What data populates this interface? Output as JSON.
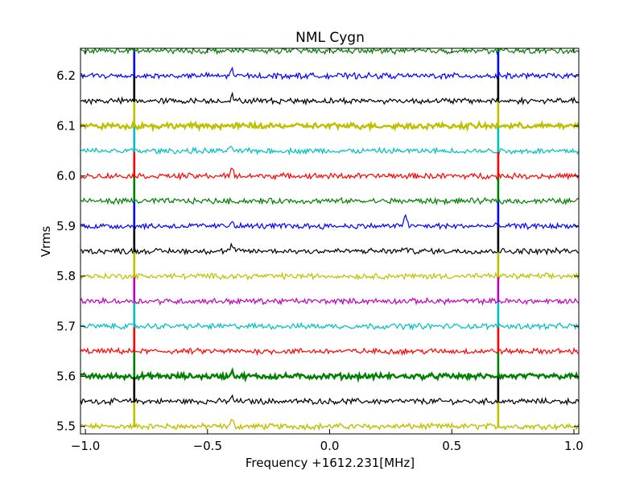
{
  "chart_data": {
    "type": "line",
    "title": "NML Cygn",
    "xlabel": "Frequency +1612.231[MHz]",
    "ylabel": "Vrms",
    "xlim": [
      -1.02,
      1.02
    ],
    "ylim": [
      5.485,
      6.255
    ],
    "x_ticks": [
      -1.0,
      -0.5,
      0.0,
      0.5,
      1.0
    ],
    "x_tick_labels": [
      "−1.0",
      "−0.5",
      "0.0",
      "0.5",
      "1.0"
    ],
    "y_ticks": [
      5.5,
      5.6,
      5.7,
      5.8,
      5.9,
      6.0,
      6.1,
      6.2
    ],
    "y_tick_labels": [
      "5.5",
      "5.6",
      "5.7",
      "5.8",
      "5.9",
      "6.0",
      "6.1",
      "6.2"
    ],
    "grid": false,
    "legend": "none",
    "spike_positions_x": [
      -0.8,
      0.69
    ],
    "series": [
      {
        "offset": 5.5,
        "color": "#bfbf00",
        "width": 1.4,
        "features": [
          [
            -0.4,
            0.012
          ]
        ]
      },
      {
        "offset": 5.55,
        "color": "#000000",
        "width": 1.2,
        "features": [
          [
            -0.4,
            0.008
          ]
        ]
      },
      {
        "offset": 5.6,
        "color": "#008000",
        "width": 2.4,
        "features": [
          [
            -0.4,
            0.01
          ]
        ]
      },
      {
        "offset": 5.65,
        "color": "#ff0000",
        "width": 1.2,
        "features": []
      },
      {
        "offset": 5.7,
        "color": "#00bfbf",
        "width": 1.2,
        "features": []
      },
      {
        "offset": 5.75,
        "color": "#bf00bf",
        "width": 1.2,
        "features": []
      },
      {
        "offset": 5.8,
        "color": "#bfbf00",
        "width": 1.2,
        "features": []
      },
      {
        "offset": 5.85,
        "color": "#000000",
        "width": 1.2,
        "features": [
          [
            -0.4,
            0.012
          ],
          [
            0.31,
            0.008
          ]
        ]
      },
      {
        "offset": 5.9,
        "color": "#0000ff",
        "width": 1.2,
        "features": [
          [
            -0.4,
            0.012
          ],
          [
            0.31,
            0.025
          ]
        ]
      },
      {
        "offset": 5.95,
        "color": "#008000",
        "width": 1.2,
        "features": []
      },
      {
        "offset": 6.0,
        "color": "#ff0000",
        "width": 1.2,
        "features": [
          [
            -0.4,
            0.014
          ]
        ]
      },
      {
        "offset": 6.05,
        "color": "#00bfbf",
        "width": 1.2,
        "features": [
          [
            -0.4,
            0.008
          ]
        ]
      },
      {
        "offset": 6.1,
        "color": "#bfbf00",
        "width": 2.4,
        "features": []
      },
      {
        "offset": 6.15,
        "color": "#000000",
        "width": 1.2,
        "features": [
          [
            -0.4,
            0.01
          ]
        ]
      },
      {
        "offset": 6.2,
        "color": "#0000ff",
        "width": 1.2,
        "features": [
          [
            -0.4,
            0.012
          ]
        ]
      },
      {
        "offset": 6.25,
        "color": "#008000",
        "width": 1.2,
        "features": []
      }
    ]
  }
}
